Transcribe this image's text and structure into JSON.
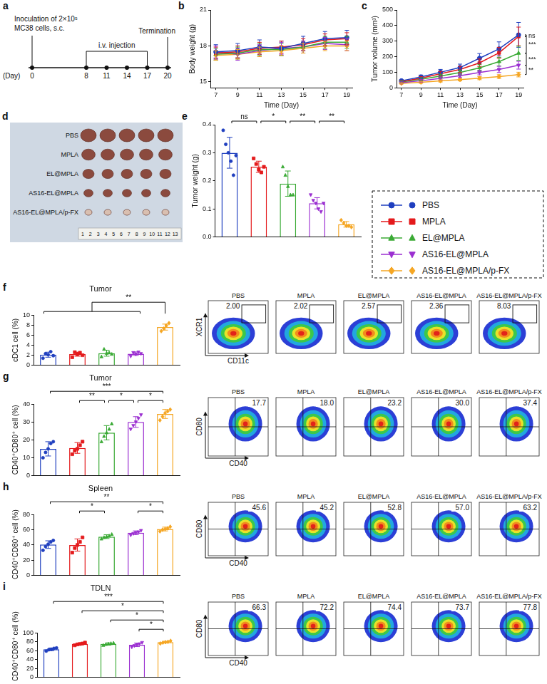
{
  "groups": [
    {
      "name": "PBS",
      "color": "#1f3fbf",
      "marker": "circle"
    },
    {
      "name": "MPLA",
      "color": "#e41a1c",
      "marker": "square"
    },
    {
      "name": "EL@MPLA",
      "color": "#3aaa35",
      "marker": "triangle"
    },
    {
      "name": "AS16-EL@MPLA",
      "color": "#9b2fd1",
      "marker": "triangle-down"
    },
    {
      "name": "AS16-EL@MPLA/p-FX",
      "color": "#f5a623",
      "marker": "diamond"
    }
  ],
  "timeline": {
    "panel": "a",
    "inoculation": [
      "Inoculation of 2×10⁵",
      "MC38 cells, s.c."
    ],
    "injection": "i.v. injection",
    "termination": "Termination",
    "day_label": "(Day)",
    "days": [
      0,
      8,
      11,
      14,
      17,
      20
    ]
  },
  "photo": {
    "panel": "d",
    "rows": [
      "PBS",
      "MPLA",
      "EL@MPLA",
      "AS16-EL@MPLA",
      "AS16-EL@MPLA/p-FX"
    ],
    "tumor_count": [
      5,
      5,
      5,
      5,
      5
    ],
    "ruler": [
      1,
      2,
      3,
      4,
      5,
      6,
      7,
      8,
      9,
      10,
      11,
      12,
      13
    ]
  },
  "chart_data": [
    {
      "panel": "b",
      "type": "line",
      "xlabel": "Time (Day)",
      "ylabel": "Body weight (g)",
      "grid": false,
      "x": [
        7,
        9,
        11,
        13,
        15,
        17,
        19
      ],
      "xlim": [
        6.5,
        19.5
      ],
      "xticks": [
        7,
        9,
        11,
        13,
        15,
        17,
        19
      ],
      "ylim": [
        14.5,
        21
      ],
      "yticks": [
        15,
        18,
        21
      ],
      "series": [
        {
          "name": "PBS",
          "values": [
            17.5,
            17.6,
            17.9,
            17.8,
            18.2,
            18.6,
            18.7
          ],
          "errors": [
            0.6,
            0.6,
            0.6,
            0.6,
            0.6,
            0.6,
            0.6
          ]
        },
        {
          "name": "MPLA",
          "values": [
            17.4,
            17.5,
            17.8,
            17.9,
            18.1,
            18.5,
            18.6
          ],
          "errors": [
            0.5,
            0.5,
            0.5,
            0.5,
            0.5,
            0.5,
            0.5
          ]
        },
        {
          "name": "EL@MPLA",
          "values": [
            17.3,
            17.4,
            17.7,
            17.7,
            17.9,
            18.3,
            18.3
          ],
          "errors": [
            0.5,
            0.5,
            0.5,
            0.5,
            0.5,
            0.5,
            0.5
          ]
        },
        {
          "name": "AS16-EL@MPLA",
          "values": [
            17.5,
            17.3,
            17.6,
            17.8,
            17.9,
            18.2,
            18.1
          ],
          "errors": [
            0.5,
            0.5,
            0.5,
            0.5,
            0.5,
            0.5,
            0.5
          ]
        },
        {
          "name": "AS16-EL@MPLA/p-FX",
          "values": [
            17.2,
            17.3,
            17.5,
            17.6,
            17.8,
            18.0,
            18.0
          ],
          "errors": [
            0.4,
            0.4,
            0.4,
            0.4,
            0.4,
            0.4,
            0.4
          ]
        }
      ]
    },
    {
      "panel": "c",
      "type": "line",
      "xlabel": "Time (Day)",
      "ylabel": "Tumor volume (mm³)",
      "grid": false,
      "x": [
        7,
        9,
        11,
        13,
        15,
        17,
        19
      ],
      "xlim": [
        6.5,
        19.5
      ],
      "xticks": [
        7,
        9,
        11,
        13,
        15,
        17,
        19
      ],
      "ylim": [
        0,
        500
      ],
      "yticks": [
        0,
        100,
        200,
        300,
        400,
        500
      ],
      "series": [
        {
          "name": "PBS",
          "values": [
            45,
            70,
            100,
            130,
            190,
            250,
            340
          ],
          "errors": [
            8,
            12,
            18,
            22,
            30,
            45,
            80
          ]
        },
        {
          "name": "MPLA",
          "values": [
            40,
            62,
            90,
            118,
            160,
            225,
            330
          ],
          "errors": [
            7,
            10,
            15,
            20,
            25,
            35,
            60
          ]
        },
        {
          "name": "EL@MPLA",
          "values": [
            38,
            55,
            75,
            98,
            128,
            168,
            222
          ],
          "errors": [
            6,
            9,
            12,
            15,
            20,
            28,
            45
          ]
        },
        {
          "name": "AS16-EL@MPLA",
          "values": [
            33,
            45,
            60,
            78,
            98,
            118,
            145
          ],
          "errors": [
            5,
            8,
            10,
            12,
            15,
            20,
            25
          ]
        },
        {
          "name": "AS16-EL@MPLA/p-FX",
          "values": [
            28,
            35,
            44,
            52,
            62,
            72,
            85
          ],
          "errors": [
            4,
            6,
            7,
            8,
            10,
            12,
            15
          ]
        }
      ],
      "significance": [
        {
          "groups": [
            0,
            1
          ],
          "label": "ns"
        },
        {
          "groups": [
            1,
            2
          ],
          "label": "***"
        },
        {
          "groups": [
            2,
            3
          ],
          "label": "***"
        },
        {
          "groups": [
            3,
            4
          ],
          "label": "**"
        }
      ]
    },
    {
      "panel": "e",
      "type": "bar",
      "ylabel": "Tumor weight (g)",
      "grid": false,
      "tick_labels": "y",
      "ylim": [
        0,
        0.4
      ],
      "yticks": [
        {
          "value": 0,
          "label": "0.0"
        },
        {
          "value": 0.1,
          "label": "0.1"
        },
        {
          "value": 0.2,
          "label": "0.2"
        },
        {
          "value": 0.3,
          "label": "0.3"
        },
        {
          "value": 0.4,
          "label": "0.4"
        }
      ],
      "values": [
        0.3,
        0.25,
        0.19,
        0.12,
        0.045
      ],
      "errors": [
        0.055,
        0.02,
        0.045,
        0.02,
        0.01
      ],
      "points": [
        [
          0.38,
          0.33,
          0.3,
          0.27,
          0.22,
          0.29
        ],
        [
          0.28,
          0.26,
          0.24,
          0.23,
          0.25
        ],
        [
          0.25,
          0.22,
          0.18,
          0.15,
          0.15
        ],
        [
          0.15,
          0.13,
          0.12,
          0.1,
          0.09,
          0.12
        ],
        [
          0.06,
          0.05,
          0.04,
          0.04,
          0.035
        ]
      ],
      "significance": [
        {
          "groups": [
            0,
            1
          ],
          "label": "ns"
        },
        {
          "groups": [
            1,
            2
          ],
          "label": "*"
        },
        {
          "groups": [
            2,
            3
          ],
          "label": "**"
        },
        {
          "groups": [
            3,
            4
          ],
          "label": "**"
        }
      ]
    },
    {
      "panel": "f",
      "type": "bar",
      "title": "Tumor",
      "ylabel": "cDC1 cell (%)",
      "grid": false,
      "tick_labels": "y",
      "ylim": [
        0,
        10
      ],
      "yticks": [
        0,
        2,
        4,
        6,
        8,
        10
      ],
      "values": [
        2.1,
        2.2,
        2.4,
        2.3,
        7.6
      ],
      "errors": [
        0.5,
        0.4,
        0.6,
        0.35,
        0.6
      ],
      "points": [
        [
          1.4,
          2.3,
          2.1,
          2.7,
          1.9
        ],
        [
          1.6,
          2.6,
          2.2,
          2.5,
          2.0
        ],
        [
          1.7,
          3.2,
          2.4,
          2.5,
          2.2
        ],
        [
          1.8,
          2.5,
          2.2,
          2.6,
          2.3
        ],
        [
          6.8,
          7.3,
          7.9,
          8.4
        ]
      ],
      "significance": [
        {
          "groups": [
            0,
            1,
            2,
            3,
            4
          ],
          "label": "**"
        }
      ]
    },
    {
      "panel": "g",
      "type": "bar",
      "title": "Tumor",
      "ylabel": "CD40⁺CD80⁺ cell (%)",
      "grid": false,
      "tick_labels": "y",
      "ylim": [
        0,
        40
      ],
      "yticks": [
        0,
        10,
        20,
        30,
        40
      ],
      "values": [
        15,
        15.5,
        24,
        30,
        34.5
      ],
      "errors": [
        4,
        3,
        4,
        3,
        2.5
      ],
      "points": [
        [
          10,
          13,
          15,
          18,
          19
        ],
        [
          12,
          14,
          15,
          17,
          19
        ],
        [
          19,
          22,
          24,
          26,
          29
        ],
        [
          26,
          28,
          30,
          32,
          34
        ],
        [
          31,
          33,
          35,
          36,
          37
        ]
      ],
      "significance": [
        {
          "groups": [
            0,
            4
          ],
          "label": "***"
        },
        {
          "groups": [
            1,
            2
          ],
          "label": "**"
        },
        {
          "groups": [
            2,
            3
          ],
          "label": "*"
        },
        {
          "groups": [
            3,
            4
          ],
          "label": "*"
        }
      ]
    },
    {
      "panel": "h",
      "type": "bar",
      "title": "Spleen",
      "ylabel": "CD40⁺CD80⁺ cell (%)",
      "grid": false,
      "tick_labels": "y",
      "ylim": [
        0,
        80
      ],
      "yticks": [
        0,
        20,
        40,
        60,
        80
      ],
      "values": [
        40.5,
        40,
        51,
        56,
        61
      ],
      "errors": [
        5,
        8,
        2.5,
        2.5,
        2.5
      ],
      "points": [
        [
          33,
          38,
          41,
          44,
          46
        ],
        [
          30,
          36,
          40,
          44,
          50
        ],
        [
          48,
          50,
          51,
          52,
          54
        ],
        [
          53,
          55,
          56,
          57,
          59
        ],
        [
          58,
          60,
          61,
          62,
          64
        ]
      ],
      "significance": [
        {
          "groups": [
            0,
            4
          ],
          "label": "**"
        },
        {
          "groups": [
            1,
            2
          ],
          "label": "*"
        },
        {
          "groups": [
            3,
            4
          ],
          "label": "*"
        }
      ]
    },
    {
      "panel": "i",
      "type": "bar",
      "title": "TDLN",
      "ylabel": "CD40⁺CD80⁺ cell (%)",
      "grid": false,
      "tick_labels": "y",
      "ylim": [
        0,
        100
      ],
      "yticks": [
        0,
        20,
        40,
        60,
        80,
        100
      ],
      "values": [
        63,
        75,
        75,
        73,
        79
      ],
      "errors": [
        3,
        2,
        2.5,
        4,
        2
      ],
      "points": [
        [
          59,
          62,
          63,
          65,
          66
        ],
        [
          72,
          74,
          75,
          76,
          78
        ],
        [
          72,
          74,
          75,
          76,
          77
        ],
        [
          68,
          71,
          73,
          75,
          78
        ],
        [
          76,
          78,
          79,
          80,
          82
        ]
      ],
      "significance": [
        {
          "groups": [
            0,
            4
          ],
          "label": "***"
        },
        {
          "groups": [
            1,
            4
          ],
          "label": "*"
        },
        {
          "groups": [
            2,
            4
          ],
          "label": "*"
        },
        {
          "groups": [
            3,
            4
          ],
          "label": "*"
        }
      ]
    }
  ],
  "flow": [
    {
      "panel": "f",
      "type": "gate",
      "xlabel": "CD11c",
      "ylabel": "XCR1",
      "titles": [
        "PBS",
        "MPLA",
        "EL@MPLA",
        "AS16-EL@MPLA",
        "AS16-EL@MPLA/p-FX"
      ],
      "values": [
        2,
        2.02,
        2.57,
        2.36,
        8.03
      ],
      "value_labels": [
        "2.00",
        "2.02",
        "2.57",
        "2.36",
        "8.03"
      ]
    },
    {
      "panel": "g",
      "type": "quadrant",
      "xlabel": "CD40",
      "ylabel": "CD80",
      "titles": [
        "PBS",
        "MPLA",
        "EL@MPLA",
        "AS16-EL@MPLA",
        "AS16-EL@MPLA/p-FX"
      ],
      "values": [
        17.7,
        18,
        23.2,
        30,
        37.4
      ],
      "value_labels": [
        "17.7",
        "18.0",
        "23.2",
        "30.0",
        "37.4"
      ]
    },
    {
      "panel": "h",
      "type": "quadrant",
      "xlabel": "CD40",
      "ylabel": "CD80",
      "titles": [
        "PBS",
        "MPLA",
        "EL@MPLA",
        "AS16-EL@MPLA",
        "AS16-EL@MPLA/p-FX"
      ],
      "values": [
        45.6,
        45.2,
        52.8,
        57,
        63.2
      ],
      "value_labels": [
        "45.6",
        "45.2",
        "52.8",
        "57.0",
        "63.2"
      ]
    },
    {
      "panel": "i",
      "type": "quadrant",
      "xlabel": "CD40",
      "ylabel": "CD80",
      "titles": [
        "PBS",
        "MPLA",
        "EL@MPLA",
        "AS16-EL@MPLA",
        "AS16-EL@MPLA/p-FX"
      ],
      "values": [
        66.3,
        72.2,
        74.4,
        73.7,
        77.8
      ],
      "value_labels": [
        "66.3",
        "72.2",
        "74.4",
        "73.7",
        "77.8"
      ]
    }
  ]
}
